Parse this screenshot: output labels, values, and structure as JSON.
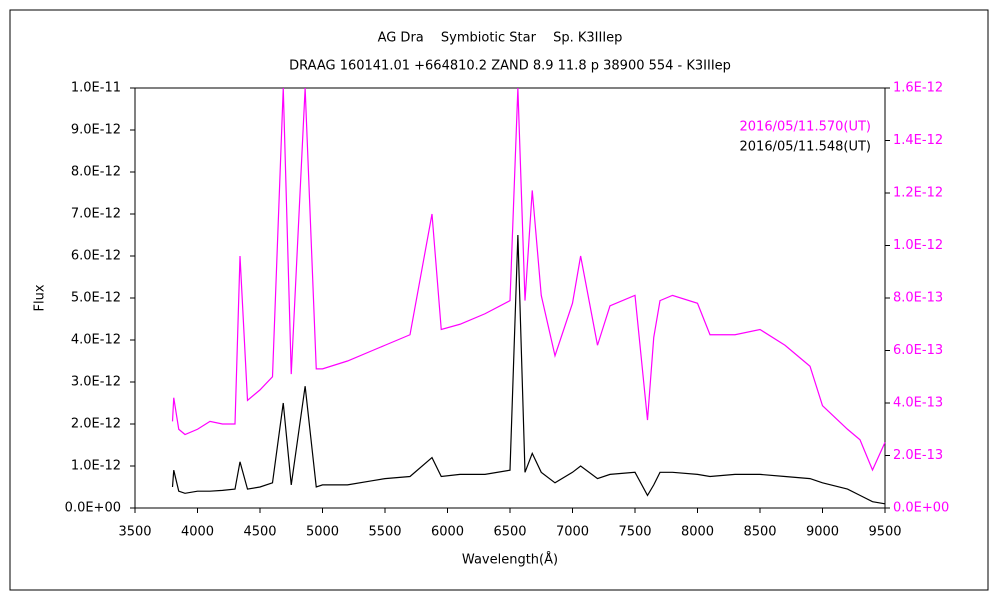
{
  "chart_data": {
    "type": "line",
    "title": "AG Dra　 Symbiotic Star　 Sp. K3IIIep",
    "subtitle": "DRAAG 160141.01  +664810.2  ZAND 8.9  11.8  p 38900  554 - K3IIIep",
    "xlabel": "Wavelength(Å)",
    "ylabel": "Flux",
    "x": [
      3800,
      3810,
      3850,
      3900,
      4000,
      4100,
      4200,
      4300,
      4340,
      4400,
      4500,
      4600,
      4686,
      4750,
      4861,
      4950,
      5000,
      5200,
      5400,
      5500,
      5700,
      5876,
      5950,
      6100,
      6300,
      6500,
      6563,
      6620,
      6678,
      6750,
      6860,
      7000,
      7065,
      7200,
      7300,
      7500,
      7600,
      7650,
      7700,
      7800,
      8000,
      8100,
      8300,
      8500,
      8700,
      8900,
      9000,
      9200,
      9300,
      9400,
      9500
    ],
    "series": [
      {
        "name": "2016/05/11.570(UT)",
        "color": "#ff00ff",
        "axis": "y2",
        "values": [
          3.3e-13,
          4.2e-13,
          3e-13,
          2.8e-13,
          3e-13,
          3.3e-13,
          3.2e-13,
          3.2e-13,
          9.6e-13,
          4.1e-13,
          4.5e-13,
          5e-13,
          1.6e-12,
          5.1e-13,
          1.6e-12,
          5.3e-13,
          5.3e-13,
          5.6e-13,
          6e-13,
          6.2e-13,
          6.6e-13,
          1.12e-12,
          6.8e-13,
          7e-13,
          7.4e-13,
          7.9e-13,
          1.6e-12,
          7.9e-13,
          1.21e-12,
          8.1e-13,
          5.8e-13,
          7.8e-13,
          9.6e-13,
          6.2e-13,
          7.7e-13,
          8.1e-13,
          3.35e-13,
          6.5e-13,
          7.9e-13,
          8.1e-13,
          7.8e-13,
          6.6e-13,
          6.6e-13,
          6.8e-13,
          6.2e-13,
          5.4e-13,
          3.9e-13,
          3e-13,
          2.6e-13,
          1.45e-13,
          2.5e-13
        ]
      },
      {
        "name": "2016/05/11.548(UT)",
        "color": "#000000",
        "values": [
          5e-13,
          9e-13,
          4e-13,
          3.5e-13,
          4e-13,
          4e-13,
          4.2e-13,
          4.5e-13,
          1.1e-12,
          4.5e-13,
          5e-13,
          6e-13,
          2.5e-12,
          5.5e-13,
          2.9e-12,
          5e-13,
          5.5e-13,
          5.5e-13,
          6.5e-13,
          7e-13,
          7.5e-13,
          1.2e-12,
          7.5e-13,
          8e-13,
          8e-13,
          9e-13,
          6.5e-12,
          8.5e-13,
          1.3e-12,
          8.5e-13,
          6e-13,
          8.5e-13,
          1e-12,
          7e-13,
          8e-13,
          8.5e-13,
          3e-13,
          5.5e-13,
          8.5e-13,
          8.5e-13,
          8e-13,
          7.5e-13,
          8e-13,
          8e-13,
          7.5e-13,
          7e-13,
          6e-13,
          4.5e-13,
          3e-13,
          1.5e-13,
          1e-13
        ]
      }
    ],
    "xlim": [
      3500,
      9500
    ],
    "xticks": [
      3500,
      4000,
      4500,
      5000,
      5500,
      6000,
      6500,
      7000,
      7500,
      8000,
      8500,
      9000,
      9500
    ],
    "ylim": [
      0,
      1e-11
    ],
    "yticks": [
      {
        "value": 0,
        "label": "0.0E+00"
      },
      {
        "value": 1e-12,
        "label": "1.0E-12"
      },
      {
        "value": 2e-12,
        "label": "2.0E-12"
      },
      {
        "value": 3e-12,
        "label": "3.0E-12"
      },
      {
        "value": 4e-12,
        "label": "4.0E-12"
      },
      {
        "value": 5e-12,
        "label": "5.0E-12"
      },
      {
        "value": 6e-12,
        "label": "6.0E-12"
      },
      {
        "value": 7e-12,
        "label": "7.0E-12"
      },
      {
        "value": 8e-12,
        "label": "8.0E-12"
      },
      {
        "value": 9e-12,
        "label": "9.0E-12"
      },
      {
        "value": 1e-11,
        "label": "1.0E-11"
      }
    ],
    "y2lim": [
      0,
      1.6e-12
    ],
    "y2ticks": [
      {
        "value": 0,
        "label": "0.0E+00"
      },
      {
        "value": 2e-13,
        "label": "2.0E-13"
      },
      {
        "value": 4e-13,
        "label": "4.0E-13"
      },
      {
        "value": 6e-13,
        "label": "6.0E-13"
      },
      {
        "value": 8e-13,
        "label": "8.0E-13"
      },
      {
        "value": 1e-12,
        "label": "1.0E-12"
      },
      {
        "value": 1.2e-12,
        "label": "1.2E-12"
      },
      {
        "value": 1.4e-12,
        "label": "1.4E-12"
      },
      {
        "value": 1.6e-12,
        "label": "1.6E-12"
      }
    ],
    "y2color": "#ff00ff",
    "legend": "upper right"
  }
}
